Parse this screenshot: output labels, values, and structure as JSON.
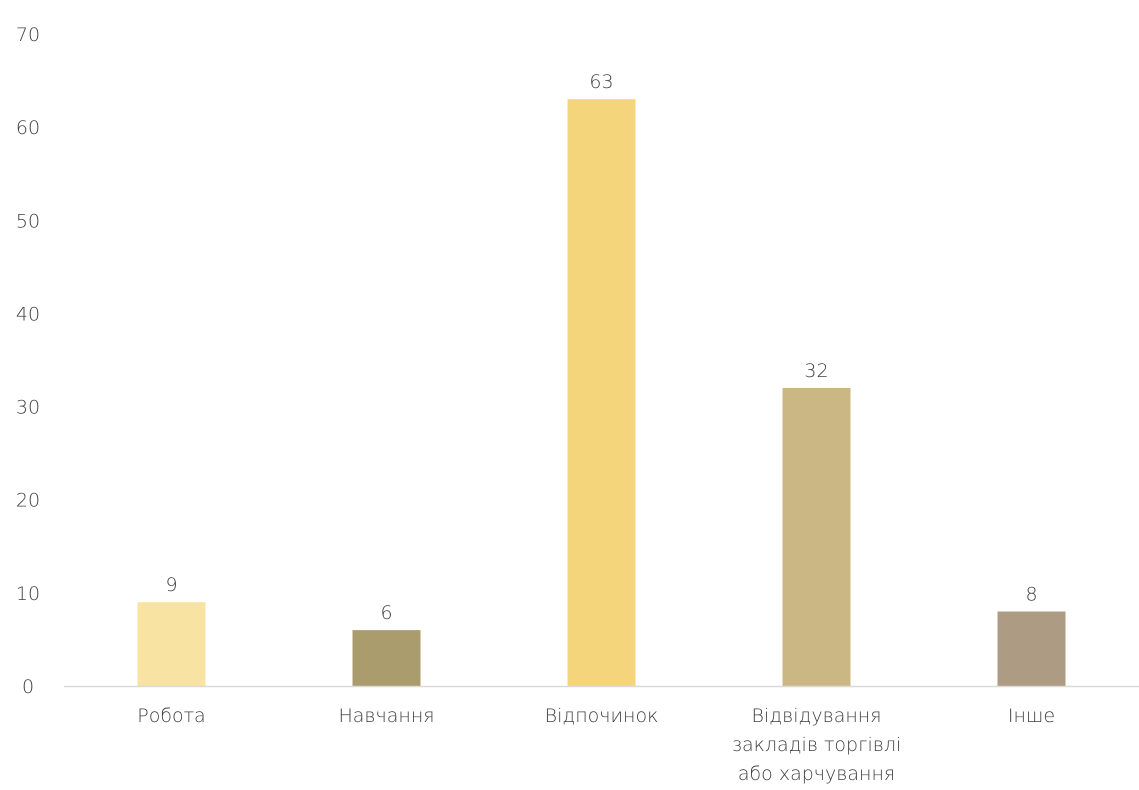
{
  "chart_data": {
    "type": "bar",
    "categories": [
      [
        "Робота"
      ],
      [
        "Навчання"
      ],
      [
        "Відпочинок"
      ],
      [
        "Відвідування",
        "закладів торгівлі",
        "або харчування"
      ],
      [
        "Інше"
      ]
    ],
    "values": [
      9,
      6,
      63,
      32,
      8
    ],
    "colors": [
      "#f8e3a3",
      "#ab9c6d",
      "#f5d57c",
      "#cab784",
      "#ae9b83"
    ],
    "ylim": [
      0,
      70
    ],
    "yticks": [
      0,
      10,
      20,
      30,
      40,
      50,
      60,
      70
    ],
    "data_labels": true,
    "grid": false,
    "legend": "none",
    "axis_color": "#d9d9d9"
  }
}
